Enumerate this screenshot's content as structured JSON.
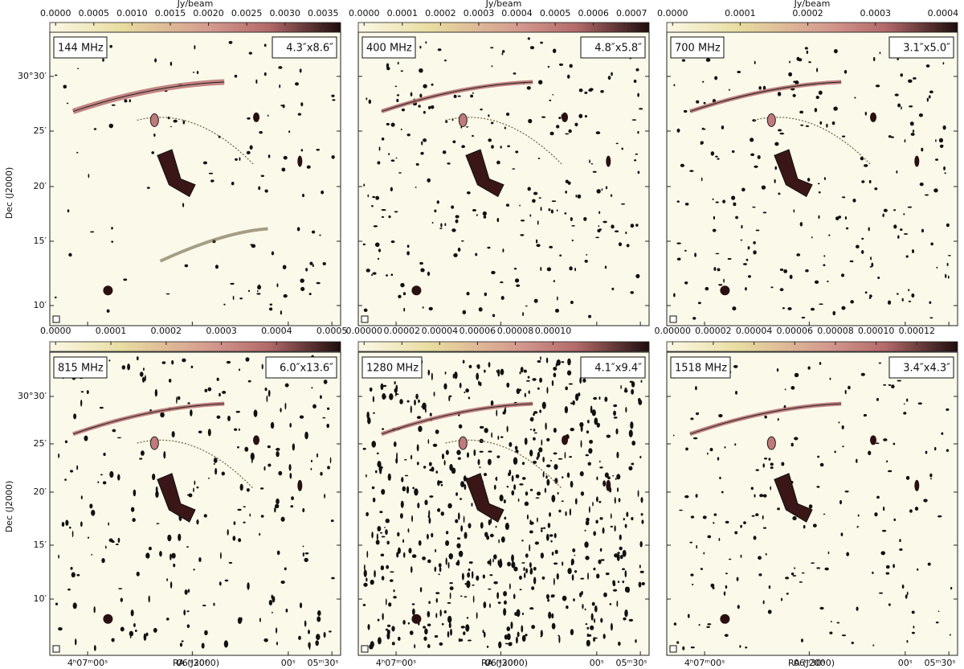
{
  "colorbar_label": "Jy/beam",
  "axis_labels": {
    "dec": "Dec (J2000)",
    "ra": "RA (J2000)"
  },
  "dec_ticks": [
    "30°30′",
    "25′",
    "20′",
    "15′",
    "10′"
  ],
  "ra_ticks": [
    "4ʰ07ᵐ00ˢ",
    "06ᵐ30ˢ",
    "00ˢ",
    "05ᵐ30ˢ"
  ],
  "panels": [
    {
      "frequency": "144 MHz",
      "beam": "4.3″x8.6″",
      "colorbar_ticks": [
        "0.0000",
        "0.0005",
        "0.0010",
        "0.0015",
        "0.0020",
        "0.0025",
        "0.0030",
        "0.0035"
      ]
    },
    {
      "frequency": "400 MHz",
      "beam": "4.8″x5.8″",
      "colorbar_ticks": [
        "0.0000",
        "0.0001",
        "0.0002",
        "0.0003",
        "0.0004",
        "0.0005",
        "0.0006",
        "0.0007"
      ]
    },
    {
      "frequency": "700 MHz",
      "beam": "3.1″x5.0″",
      "colorbar_ticks": [
        "0.0000",
        "0.0001",
        "0.0002",
        "0.0003",
        "0.0004"
      ]
    },
    {
      "frequency": "815 MHz",
      "beam": "6.0″x13.6″",
      "colorbar_ticks": [
        "0.0000",
        "0.0001",
        "0.0002",
        "0.0003",
        "0.0004",
        "0.0005"
      ]
    },
    {
      "frequency": "1280 MHz",
      "beam": "4.1″x9.4″",
      "colorbar_ticks": [
        "0.00000",
        "0.00002",
        "0.00004",
        "0.00006",
        "0.00008",
        "0.00010"
      ]
    },
    {
      "frequency": "1518 MHz",
      "beam": "3.4″x4.3″",
      "colorbar_ticks": [
        "0.00000",
        "0.00002",
        "0.00004",
        "0.00006",
        "0.00008",
        "0.00010",
        "0.00012"
      ]
    }
  ]
}
